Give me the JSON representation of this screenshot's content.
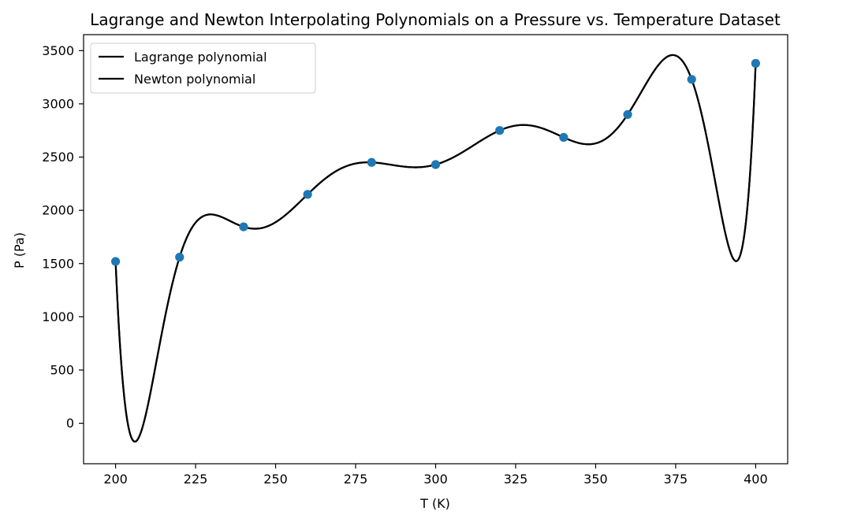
{
  "chart_data": {
    "type": "line",
    "title": "Lagrange and Newton Interpolating Polynomials on a Pressure vs. Temperature Dataset",
    "xlabel": "T (K)",
    "ylabel": "P (Pa)",
    "xlim": [
      190,
      410
    ],
    "ylim": [
      -380,
      3650
    ],
    "xticks": [
      200,
      225,
      250,
      275,
      300,
      325,
      350,
      375,
      400
    ],
    "yticks": [
      0,
      500,
      1000,
      1500,
      2000,
      2500,
      3000,
      3500
    ],
    "grid": false,
    "legend": {
      "placement": "top-left",
      "entries": [
        "Lagrange polynomial",
        "Newton polynomial"
      ]
    },
    "scatter": {
      "color": "#1f77b4",
      "x": [
        200,
        220,
        240,
        260,
        280,
        300,
        320,
        340,
        360,
        380,
        400
      ],
      "y": [
        1520,
        1560,
        1845,
        2150,
        2450,
        2430,
        2750,
        2685,
        2900,
        3230,
        3380
      ]
    },
    "series": [
      {
        "name": "Lagrange polynomial",
        "color": "#000000",
        "style": "interpolating-polynomial"
      },
      {
        "name": "Newton polynomial",
        "color": "#000000",
        "style": "interpolating-polynomial"
      }
    ]
  }
}
